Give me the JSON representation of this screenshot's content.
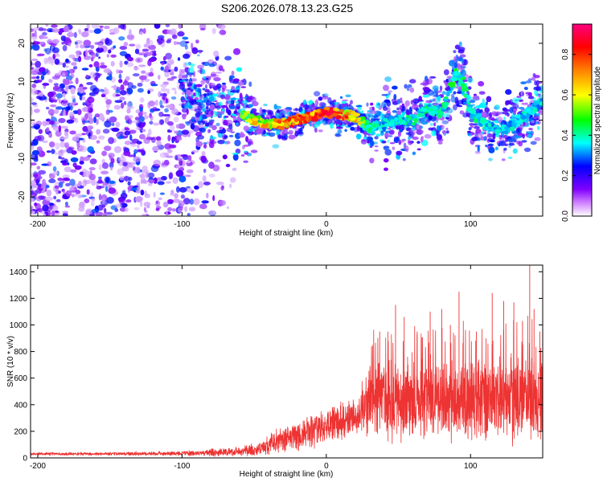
{
  "title": "S206.2026.078.13.23.G25",
  "chart_data": [
    {
      "type": "heatmap",
      "name": "spectrogram",
      "xlabel": "Height of straight line (km)",
      "ylabel": "Frequency (Hz)",
      "xlim": [
        -205,
        150
      ],
      "ylim": [
        -25,
        25
      ],
      "xticks": [
        -200,
        -100,
        0,
        100
      ],
      "yticks": [
        -20,
        -10,
        0,
        10,
        20
      ],
      "colorbar": {
        "label": "Normalized spectral amplitude",
        "range": [
          0.0,
          0.95
        ],
        "ticks": [
          "0.0",
          "0.2",
          "0.4",
          "0.6",
          "0.8"
        ],
        "tick_values": [
          0.0,
          0.2,
          0.4,
          0.6,
          0.8
        ],
        "colormap": [
          "#ffffff",
          "#7f00ff",
          "#0000ff",
          "#00ffff",
          "#00ff00",
          "#ffff00",
          "#ff8000",
          "#ff0000",
          "#ff0080"
        ]
      },
      "ridge": {
        "x": [
          -100,
          -80,
          -60,
          -50,
          -40,
          -30,
          -20,
          -10,
          0,
          10,
          20,
          30,
          40,
          50,
          60,
          70,
          80,
          90,
          95,
          100,
          110,
          120,
          130,
          140,
          150
        ],
        "freq": [
          7,
          4,
          2,
          0,
          -1,
          -1,
          0,
          1,
          2,
          1.5,
          1,
          -2,
          -1,
          0,
          0,
          3,
          2,
          12,
          10,
          2,
          -1,
          -3,
          -1,
          2,
          5
        ],
        "amplitude": [
          0.15,
          0.25,
          0.45,
          0.6,
          0.65,
          0.7,
          0.8,
          0.85,
          0.9,
          0.85,
          0.6,
          0.35,
          0.3,
          0.3,
          0.35,
          0.35,
          0.35,
          0.4,
          0.35,
          0.35,
          0.3,
          0.3,
          0.3,
          0.3,
          0.3
        ]
      }
    },
    {
      "type": "line",
      "name": "snr",
      "xlabel": "Height of straight line (km)",
      "ylabel": "SNR (10 * v/v)",
      "xlim": [
        -205,
        150
      ],
      "ylim": [
        0,
        1450
      ],
      "xticks": [
        -200,
        -100,
        0,
        100
      ],
      "yticks": [
        0,
        200,
        400,
        600,
        800,
        1000,
        1200,
        1400
      ],
      "color": "#ee3333",
      "envelope": {
        "x": [
          -205,
          -150,
          -100,
          -80,
          -60,
          -45,
          -35,
          -25,
          -20,
          -10,
          0,
          10,
          20,
          30,
          40,
          60,
          80,
          100,
          120,
          140,
          150
        ],
        "mean": [
          30,
          30,
          35,
          40,
          50,
          70,
          120,
          150,
          170,
          200,
          250,
          280,
          330,
          420,
          430,
          430,
          430,
          440,
          440,
          440,
          440
        ],
        "amplitude": [
          10,
          12,
          15,
          25,
          35,
          45,
          90,
          90,
          110,
          120,
          120,
          130,
          140,
          250,
          280,
          280,
          280,
          300,
          300,
          300,
          280
        ]
      },
      "spikes": [
        {
          "x": 37,
          "y": 950
        },
        {
          "x": 48,
          "y": 1150
        },
        {
          "x": 54,
          "y": 1060
        },
        {
          "x": 63,
          "y": 950
        },
        {
          "x": 72,
          "y": 1100
        },
        {
          "x": 80,
          "y": 1120
        },
        {
          "x": 86,
          "y": 1000
        },
        {
          "x": 92,
          "y": 1250
        },
        {
          "x": 104,
          "y": 950
        },
        {
          "x": 115,
          "y": 1240
        },
        {
          "x": 123,
          "y": 1180
        },
        {
          "x": 130,
          "y": 1170
        },
        {
          "x": 136,
          "y": 1030
        },
        {
          "x": 141,
          "y": 1450
        },
        {
          "x": 144,
          "y": 1120
        },
        {
          "x": 148,
          "y": 950
        }
      ]
    }
  ]
}
